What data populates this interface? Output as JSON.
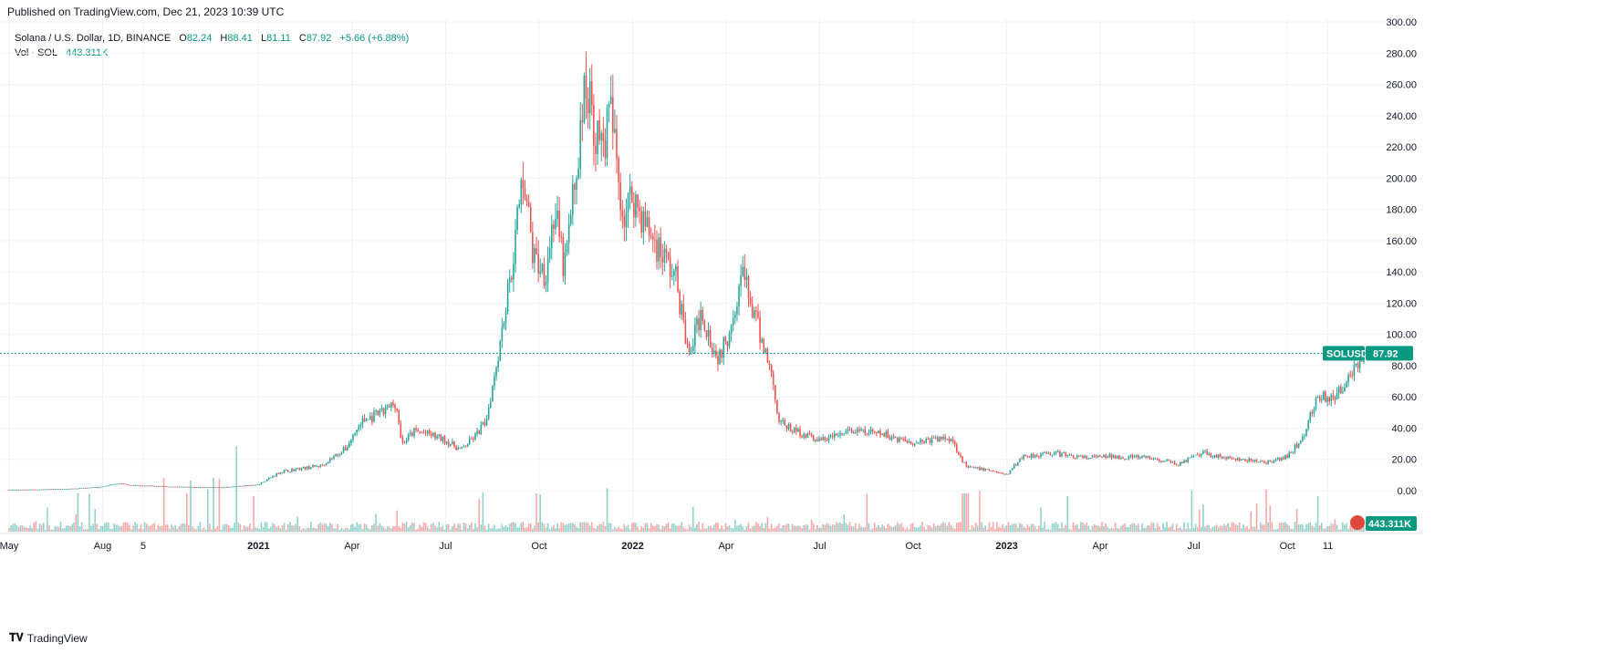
{
  "header": {
    "published": "Published on TradingView.com, Dec 21, 2023 10:39 UTC"
  },
  "legend": {
    "symbol": "Solana / U.S. Dollar, 1D, BINANCE",
    "o_label": "O",
    "o_value": "82.24",
    "h_label": "H",
    "h_value": "88.41",
    "l_label": "L",
    "l_value": "81.11",
    "c_label": "C",
    "c_value": "87.92",
    "change": "+5.66 (+6.88%)",
    "vol_label": "Vol · SOL",
    "vol_value": "443.311K"
  },
  "price_tag": {
    "symbol": "SOLUSD",
    "value": "87.92",
    "price": 87.92
  },
  "volume_tag": {
    "value": "443.311K"
  },
  "footer": {
    "brand": "TradingView"
  },
  "colors": {
    "up": "#26a69a",
    "down": "#ef5350",
    "grid": "#f0f3fa",
    "text": "#131722",
    "tag": "#089981"
  },
  "chart_data": {
    "type": "candlestick",
    "title": "Solana / U.S. Dollar, 1D, BINANCE",
    "ylim": [
      0,
      300
    ],
    "yticks": [
      "0.00",
      "20.00",
      "40.00",
      "60.00",
      "80.00",
      "100.00",
      "120.00",
      "140.00",
      "160.00",
      "180.00",
      "200.00",
      "220.00",
      "240.00",
      "260.00",
      "280.00",
      "300.00"
    ],
    "xticks": [
      {
        "label": "May",
        "t": 0
      },
      {
        "label": "Aug",
        "t": 3
      },
      {
        "label": "5",
        "t": 4.3
      },
      {
        "label": "2021",
        "t": 8
      },
      {
        "label": "Apr",
        "t": 11
      },
      {
        "label": "Jul",
        "t": 14
      },
      {
        "label": "Oct",
        "t": 17
      },
      {
        "label": "2022",
        "t": 20
      },
      {
        "label": "Apr",
        "t": 23
      },
      {
        "label": "Jul",
        "t": 26
      },
      {
        "label": "Oct",
        "t": 29
      },
      {
        "label": "2023",
        "t": 32
      },
      {
        "label": "Apr",
        "t": 35
      },
      {
        "label": "Jul",
        "t": 38
      },
      {
        "label": "Oct",
        "t": 41
      },
      {
        "label": "11",
        "t": 42.3
      }
    ],
    "bold_xticks": [
      "2021",
      "2022",
      "2023"
    ],
    "t_range": [
      0,
      43.6
    ],
    "close_path": [
      {
        "t": 0,
        "p": 0.6
      },
      {
        "t": 1,
        "p": 0.8
      },
      {
        "t": 2,
        "p": 1.2
      },
      {
        "t": 3,
        "p": 2.5
      },
      {
        "t": 3.5,
        "p": 4.5
      },
      {
        "t": 4,
        "p": 3.4
      },
      {
        "t": 5,
        "p": 2.7
      },
      {
        "t": 6,
        "p": 2.2
      },
      {
        "t": 7,
        "p": 2.3
      },
      {
        "t": 8,
        "p": 4
      },
      {
        "t": 8.7,
        "p": 12
      },
      {
        "t": 9.3,
        "p": 14
      },
      {
        "t": 10,
        "p": 16
      },
      {
        "t": 10.8,
        "p": 27
      },
      {
        "t": 11.3,
        "p": 44
      },
      {
        "t": 12,
        "p": 50
      },
      {
        "t": 12.4,
        "p": 57
      },
      {
        "t": 12.6,
        "p": 30
      },
      {
        "t": 13,
        "p": 38
      },
      {
        "t": 13.5,
        "p": 36
      },
      {
        "t": 14,
        "p": 32
      },
      {
        "t": 14.5,
        "p": 26
      },
      {
        "t": 15,
        "p": 36
      },
      {
        "t": 15.3,
        "p": 45
      },
      {
        "t": 15.6,
        "p": 78
      },
      {
        "t": 16.1,
        "p": 140
      },
      {
        "t": 16.5,
        "p": 205
      },
      {
        "t": 16.8,
        "p": 150
      },
      {
        "t": 17.2,
        "p": 140
      },
      {
        "t": 17.5,
        "p": 180
      },
      {
        "t": 17.8,
        "p": 140
      },
      {
        "t": 18.2,
        "p": 205
      },
      {
        "t": 18.5,
        "p": 262
      },
      {
        "t": 18.8,
        "p": 230
      },
      {
        "t": 19,
        "p": 218
      },
      {
        "t": 19.3,
        "p": 242
      },
      {
        "t": 19.7,
        "p": 175
      },
      {
        "t": 20,
        "p": 190
      },
      {
        "t": 20.4,
        "p": 170
      },
      {
        "t": 21,
        "p": 150
      },
      {
        "t": 21.4,
        "p": 135
      },
      {
        "t": 21.8,
        "p": 85
      },
      {
        "t": 22.2,
        "p": 115
      },
      {
        "t": 22.7,
        "p": 85
      },
      {
        "t": 23,
        "p": 95
      },
      {
        "t": 23.5,
        "p": 140
      },
      {
        "t": 24,
        "p": 105
      },
      {
        "t": 24.4,
        "p": 80
      },
      {
        "t": 24.7,
        "p": 45
      },
      {
        "t": 25,
        "p": 40
      },
      {
        "t": 26,
        "p": 32
      },
      {
        "t": 27,
        "p": 38
      },
      {
        "t": 28,
        "p": 36
      },
      {
        "t": 29,
        "p": 31
      },
      {
        "t": 30.2,
        "p": 34
      },
      {
        "t": 30.7,
        "p": 15
      },
      {
        "t": 31.5,
        "p": 13
      },
      {
        "t": 32,
        "p": 10
      },
      {
        "t": 32.5,
        "p": 22
      },
      {
        "t": 33.5,
        "p": 24
      },
      {
        "t": 34.5,
        "p": 21
      },
      {
        "t": 35.5,
        "p": 22
      },
      {
        "t": 36.5,
        "p": 21
      },
      {
        "t": 37.5,
        "p": 17
      },
      {
        "t": 38.3,
        "p": 24
      },
      {
        "t": 39.3,
        "p": 20
      },
      {
        "t": 40.5,
        "p": 18
      },
      {
        "t": 41,
        "p": 22
      },
      {
        "t": 41.5,
        "p": 34
      },
      {
        "t": 42,
        "p": 62
      },
      {
        "t": 42.5,
        "p": 57
      },
      {
        "t": 43,
        "p": 76
      },
      {
        "t": 43.45,
        "p": 87.92
      }
    ],
    "last": {
      "open": 82.24,
      "high": 88.41,
      "low": 81.11,
      "close": 87.92
    }
  }
}
